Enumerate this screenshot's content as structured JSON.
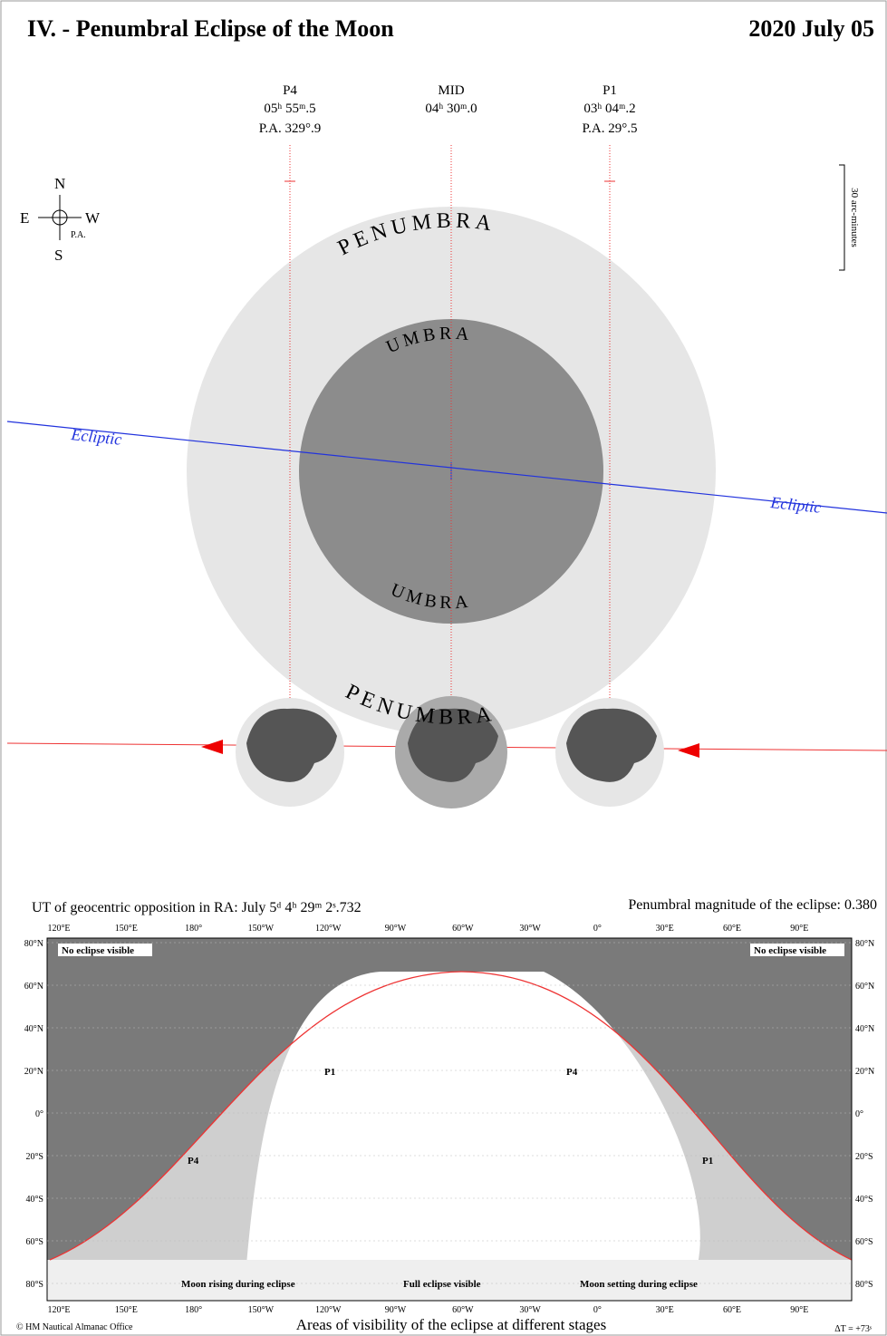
{
  "header": {
    "title": "IV. - Penumbral Eclipse of the Moon",
    "date": "2020 July 05"
  },
  "contacts": [
    {
      "label": "P4",
      "time": "05ʰ 55ᵐ.5",
      "pa": "P.A. 329°.9"
    },
    {
      "label": "MID",
      "time": "04ʰ 30ᵐ.0"
    },
    {
      "label": "P1",
      "time": "03ʰ 04ᵐ.2",
      "pa": "P.A. 29°.5"
    }
  ],
  "compass": {
    "n": "N",
    "e": "E",
    "w": "W",
    "s": "S",
    "pa": "P.A."
  },
  "scale": "30 arc-minutes",
  "shadow": {
    "penumbra": "PENUMBRA",
    "umbra": "UMBRA",
    "ecliptic": "Ecliptic"
  },
  "info": {
    "opposition": "UT of geocentric opposition in RA: July 5ᵈ 4ʰ 29ᵐ 2ˢ.732",
    "magnitude": "Penumbral magnitude of the eclipse: 0.380"
  },
  "map": {
    "longitudes": [
      "120°E",
      "150°E",
      "180°",
      "150°W",
      "120°W",
      "90°W",
      "60°W",
      "30°W",
      "0°",
      "30°E",
      "60°E",
      "90°E"
    ],
    "latitudes": [
      "80°N",
      "60°N",
      "40°N",
      "20°N",
      "0°",
      "20°S",
      "40°S",
      "60°S",
      "80°S"
    ],
    "no_eclipse": "No eclipse visible",
    "rising": "Moon rising during eclipse",
    "full": "Full eclipse visible",
    "setting": "Moon setting during eclipse",
    "p1": "P1",
    "p4": "P4"
  },
  "footer": {
    "credit": "© HM Nautical Almanac Office",
    "caption": "Areas of visibility of the eclipse at different stages",
    "delta_t": "ΔT = +73ˢ"
  }
}
